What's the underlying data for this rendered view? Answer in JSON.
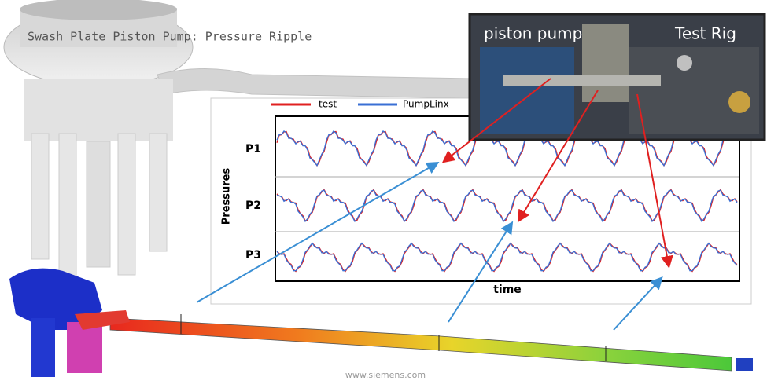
{
  "header": {
    "title": "Swash Plate Piston Pump: Pressure Ripple"
  },
  "legend": {
    "items": [
      "test",
      "PumpLinx"
    ]
  },
  "plot": {
    "rows": [
      "P1",
      "P2",
      "P3"
    ],
    "y_label": "Pressures",
    "x_label": "time"
  },
  "photo": {
    "labels": [
      "piston pump",
      "Test Rig"
    ]
  },
  "footer": {
    "watermark": "www.siemens.com"
  }
}
